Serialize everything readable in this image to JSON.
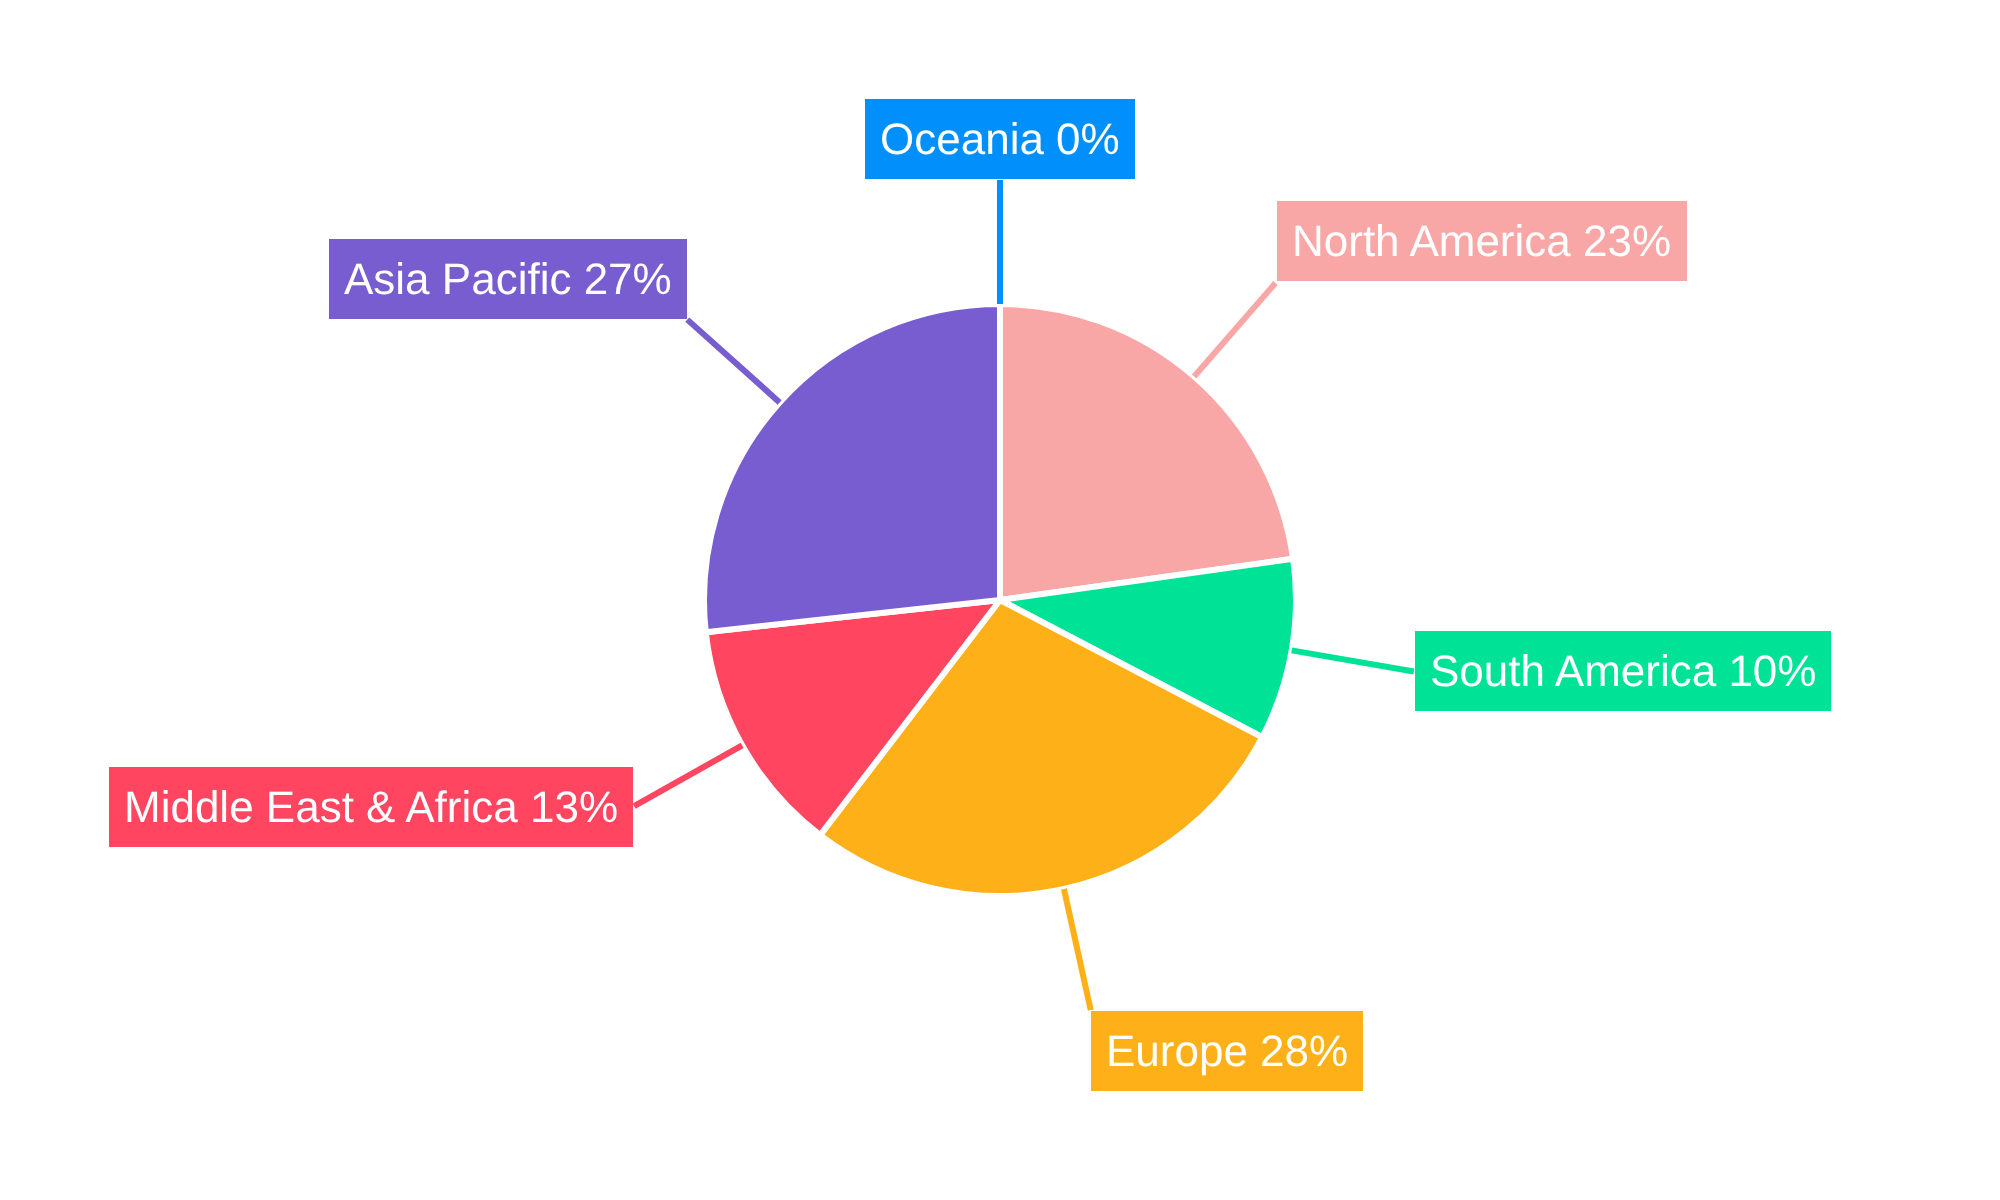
{
  "chart_data": {
    "type": "pie",
    "categories": [
      "North America",
      "South America",
      "Europe",
      "Middle East & Africa",
      "Asia Pacific",
      "Oceania"
    ],
    "values": [
      23,
      10,
      28,
      13,
      27,
      0
    ],
    "value_labels": [
      "23%",
      "10%",
      "28%",
      "13%",
      "27%",
      "0%"
    ],
    "colors": [
      "#f9a6a6",
      "#00e396",
      "#feb019",
      "#ff4560",
      "#775dd0",
      "#008ffb"
    ]
  }
}
